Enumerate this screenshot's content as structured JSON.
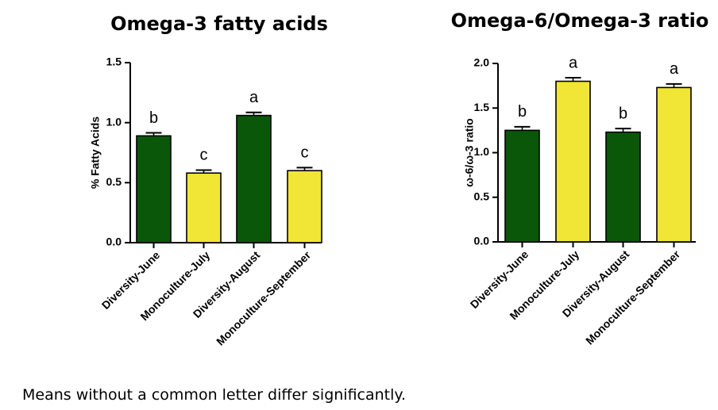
{
  "colors": {
    "diversity": "#0a570a",
    "monoculture": "#f1e535",
    "axis": "#000000"
  },
  "chart_data": [
    {
      "type": "bar",
      "title": "Omega-3 fatty acids",
      "ylabel": "% Fatty Acids",
      "xlabel": "",
      "ylim": [
        0,
        1.5
      ],
      "yticks": [
        "0.0",
        "0.5",
        "1.0",
        "1.5"
      ],
      "yticks_values": [
        0,
        0.5,
        1.0,
        1.5
      ],
      "grid": false,
      "categories": [
        "Diversity-June",
        "Monoculture-July",
        "Diversity-August",
        "Monoculture-September"
      ],
      "values": [
        0.89,
        0.58,
        1.06,
        0.6
      ],
      "errors": [
        0.025,
        0.025,
        0.025,
        0.025
      ],
      "bar_colors": [
        "diversity",
        "monoculture",
        "diversity",
        "monoculture"
      ],
      "significance_letters": [
        "b",
        "c",
        "a",
        "c"
      ]
    },
    {
      "type": "bar",
      "title": "Omega-6/Omega-3 ratio",
      "ylabel": "ω-6/ω-3 ratio",
      "xlabel": "",
      "ylim": [
        0,
        2.0
      ],
      "yticks": [
        "0.0",
        "0.5",
        "1.0",
        "1.5",
        "2.0"
      ],
      "yticks_values": [
        0,
        0.5,
        1.0,
        1.5,
        2.0
      ],
      "grid": false,
      "categories": [
        "Diversity-June",
        "Monoculture-July",
        "Diversity-August",
        "Monoculture-September"
      ],
      "values": [
        1.25,
        1.8,
        1.23,
        1.73
      ],
      "errors": [
        0.04,
        0.04,
        0.04,
        0.04
      ],
      "bar_colors": [
        "diversity",
        "monoculture",
        "diversity",
        "monoculture"
      ],
      "significance_letters": [
        "b",
        "a",
        "b",
        "a"
      ]
    }
  ],
  "footnote": "Means without a common letter differ significantly."
}
